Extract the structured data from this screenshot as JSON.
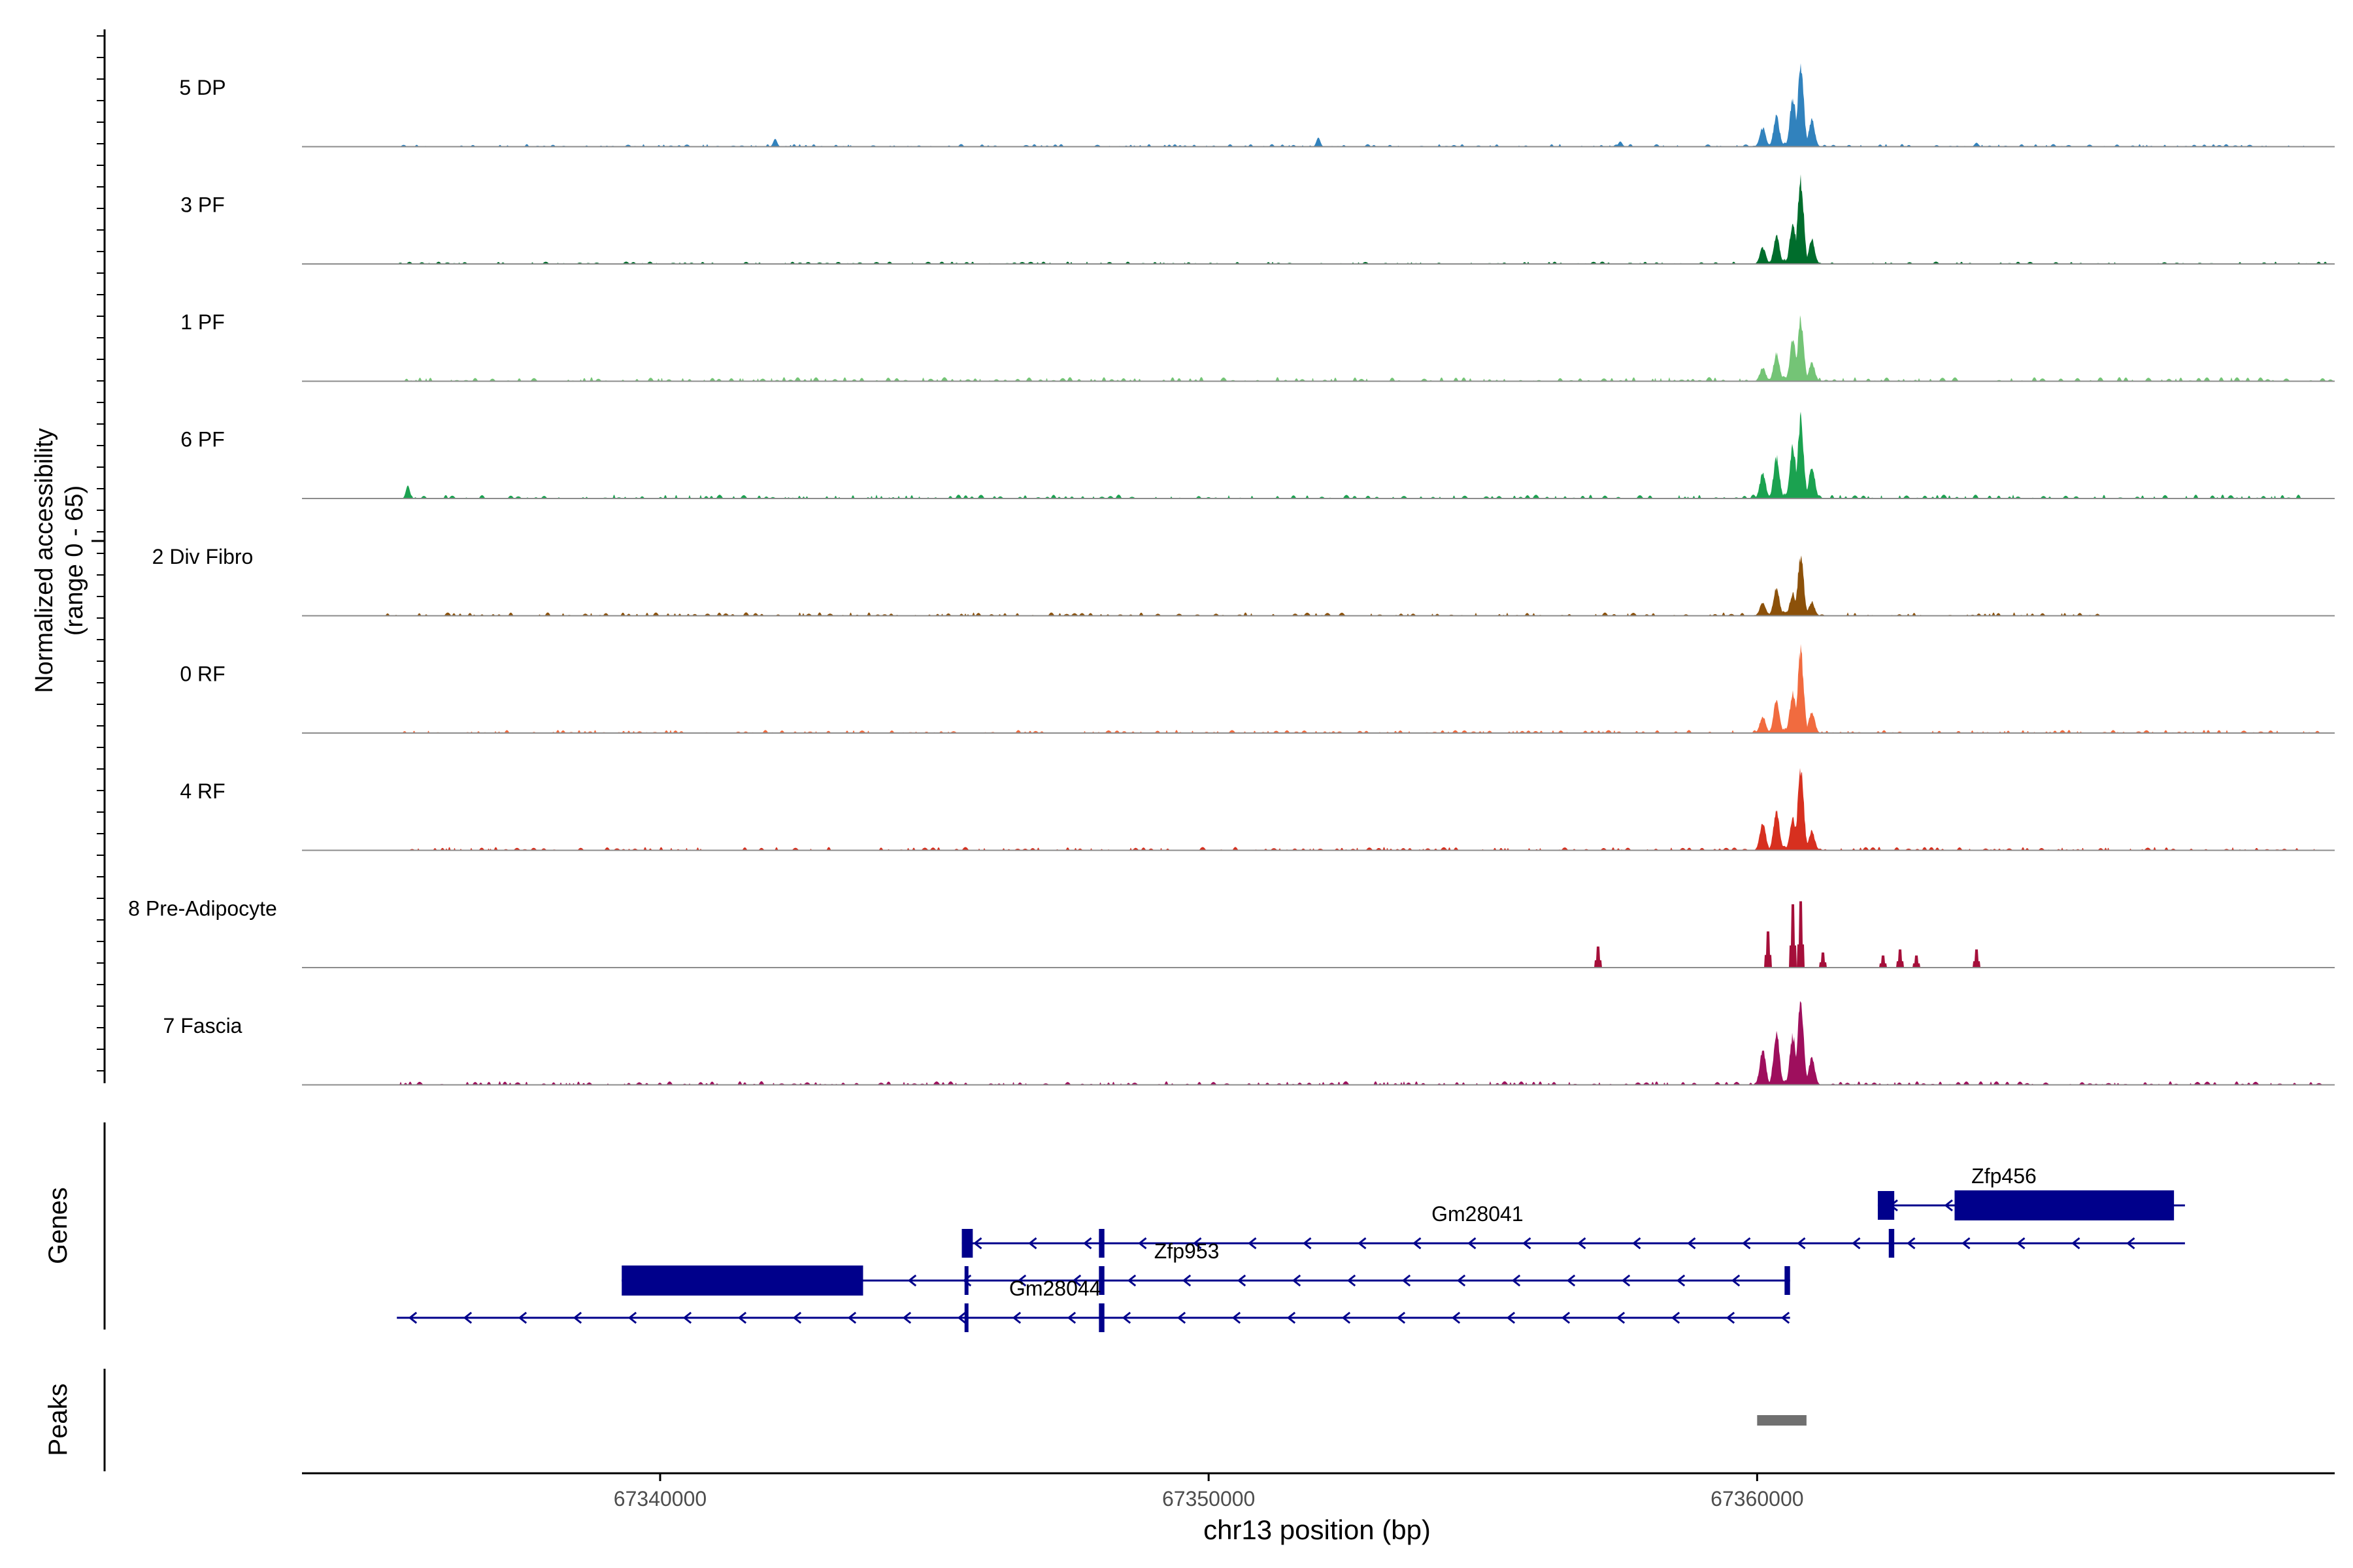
{
  "chart_data": {
    "type": "area",
    "title": "",
    "xlabel": "chr13 position (bp)",
    "ylabel_line1": "Normalized accessibility",
    "ylabel_line2": "(range 0 - 65)",
    "y_range": [
      0,
      65
    ],
    "xlim": [
      67333470,
      67370530
    ],
    "x_ticks": [
      {
        "value": 67340000,
        "label": "67340000"
      },
      {
        "value": 67350000,
        "label": "67350000"
      },
      {
        "value": 67360000,
        "label": "67360000"
      }
    ],
    "tracks_label": "",
    "genes_label": "Genes",
    "peaks_label": "Peaks",
    "peaks": [
      {
        "start": 67360000,
        "end": 67360900
      }
    ],
    "series": [
      {
        "name": "5 DP",
        "color": "#3182BD",
        "noise": 1.0,
        "noise_start": 67335200,
        "noise_end": 67370000,
        "bumps": [
          [
            67342100,
            3.0
          ],
          [
            67352000,
            3.5
          ],
          [
            67364000,
            1.5
          ],
          [
            67357500,
            2.0
          ]
        ],
        "peaks": [
          [
            67360100,
            14
          ],
          [
            67360350,
            22
          ],
          [
            67360650,
            35
          ],
          [
            67360800,
            60
          ],
          [
            67361000,
            20
          ]
        ]
      },
      {
        "name": "3 PF",
        "color": "#006D2C",
        "noise": 0.9,
        "noise_start": 67335200,
        "noise_end": 67370600,
        "bumps": [],
        "peaks": [
          [
            67360100,
            12
          ],
          [
            67360350,
            20
          ],
          [
            67360650,
            30
          ],
          [
            67360800,
            62
          ],
          [
            67361000,
            18
          ]
        ]
      },
      {
        "name": "1 PF",
        "color": "#74C476",
        "noise": 1.6,
        "noise_start": 67335200,
        "noise_end": 67370600,
        "bumps": [],
        "peaks": [
          [
            67360100,
            10
          ],
          [
            67360350,
            20
          ],
          [
            67360650,
            30
          ],
          [
            67360800,
            45
          ],
          [
            67361000,
            14
          ]
        ]
      },
      {
        "name": "6 PF",
        "color": "#1BA250",
        "noise": 1.5,
        "noise_start": 67335200,
        "noise_end": 67370000,
        "bumps": [
          [
            67335400,
            5.0
          ]
        ],
        "peaks": [
          [
            67360100,
            18
          ],
          [
            67360350,
            30
          ],
          [
            67360650,
            38
          ],
          [
            67360800,
            58
          ],
          [
            67361000,
            24
          ]
        ]
      },
      {
        "name": "2 Div Fibro",
        "color": "#8C510A",
        "noise": 1.3,
        "noise_start": 67335000,
        "noise_end": 67366200,
        "bumps": [],
        "peaks": [
          [
            67360100,
            10
          ],
          [
            67360350,
            20
          ],
          [
            67360650,
            16
          ],
          [
            67360800,
            44
          ],
          [
            67361000,
            10
          ]
        ]
      },
      {
        "name": "0 RF",
        "color": "#F16B3F",
        "noise": 1.2,
        "noise_start": 67335200,
        "noise_end": 67370200,
        "bumps": [],
        "peaks": [
          [
            67360100,
            12
          ],
          [
            67360350,
            24
          ],
          [
            67360650,
            30
          ],
          [
            67360800,
            60
          ],
          [
            67361000,
            16
          ]
        ]
      },
      {
        "name": "4 RF",
        "color": "#D7301F",
        "noise": 1.3,
        "noise_start": 67335200,
        "noise_end": 67370600,
        "bumps": [],
        "peaks": [
          [
            67360100,
            20
          ],
          [
            67360350,
            30
          ],
          [
            67360650,
            24
          ],
          [
            67360800,
            60
          ],
          [
            67361000,
            14
          ]
        ]
      },
      {
        "name": "8 Pre-Adipocyte",
        "color": "#A50F3A",
        "noise": 0,
        "noise_start": 67357000,
        "noise_end": 67367000,
        "bumps": [],
        "peaks": [],
        "spikes": [
          [
            67357100,
            14
          ],
          [
            67360200,
            24
          ],
          [
            67360650,
            42
          ],
          [
            67360800,
            44
          ],
          [
            67361200,
            10
          ],
          [
            67362300,
            8
          ],
          [
            67362600,
            12
          ],
          [
            67362900,
            8
          ],
          [
            67364000,
            12
          ]
        ]
      },
      {
        "name": "7 Fascia",
        "color": "#9E0F5D",
        "noise": 1.4,
        "noise_start": 67335200,
        "noise_end": 67370200,
        "bumps": [],
        "peaks": [
          [
            67360100,
            26
          ],
          [
            67360350,
            38
          ],
          [
            67360650,
            36
          ],
          [
            67360800,
            60
          ],
          [
            67361000,
            20
          ]
        ]
      }
    ],
    "genes": [
      {
        "name": "Zfp456",
        "row": 0,
        "start": 67362200,
        "end": 67367800,
        "strand": "-",
        "exons": [
          [
            67362200,
            67362500
          ],
          [
            67363600,
            67367600
          ]
        ],
        "label_pos": 67364500
      },
      {
        "name": "Gm28041",
        "row": 1,
        "start": 67345500,
        "end": 67367800,
        "strand": "-",
        "exons": [
          [
            67345500,
            67345700
          ],
          [
            67348000,
            67348100
          ],
          [
            67362400,
            67362500
          ]
        ],
        "label_pos": 67354900
      },
      {
        "name": "Zfp953",
        "row": 2,
        "start": 67339300,
        "end": 67360600,
        "strand": "-",
        "exons": [
          [
            67339300,
            67343700
          ],
          [
            67345550,
            67345600
          ],
          [
            67348000,
            67348100
          ],
          [
            67360500,
            67360600
          ]
        ],
        "label_pos": 67349600
      },
      {
        "name": "Gm28044",
        "row": 3,
        "start": 67335200,
        "end": 67360600,
        "strand": "-",
        "exons": [
          [
            67345550,
            67345600
          ],
          [
            67348000,
            67348100
          ]
        ],
        "label_pos": 67347200
      }
    ],
    "gene_color": "#00008B"
  }
}
